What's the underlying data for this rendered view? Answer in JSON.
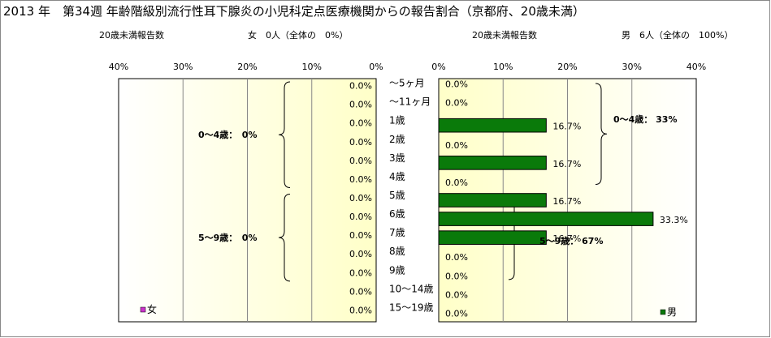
{
  "header": {
    "title": "2013 年　第34週 年齢階級別流行性耳下腺炎の小児科定点医療機関からの報告割合（京都府、20歳未満）",
    "female_count_label": "20歳未満報告数",
    "female_count_value": "女　0人（全体の　0%）",
    "male_count_label": "20歳未満報告数",
    "male_count_value": "男　6人（全体の　100%）"
  },
  "colors": {
    "female": "#cc33cc",
    "male": "#0a7a0a",
    "plot_bg_light": "#ffffff",
    "plot_bg_dark": "#ffffc8"
  },
  "chart_data": [
    {
      "type": "bar",
      "orientation": "horizontal",
      "direction": "right-to-left",
      "categories": [
        "～5ヶ月",
        "～11ヶ月",
        "1歳",
        "2歳",
        "3歳",
        "4歳",
        "5歳",
        "6歳",
        "7歳",
        "8歳",
        "9歳",
        "10～14歳",
        "15～19歳"
      ],
      "series": [
        {
          "name": "女",
          "values": [
            0,
            0,
            0,
            0,
            0,
            0,
            0,
            0,
            0,
            0,
            0,
            0,
            0
          ]
        }
      ],
      "data_labels": [
        "0.0%",
        "0.0%",
        "0.0%",
        "0.0%",
        "0.0%",
        "0.0%",
        "0.0%",
        "0.0%",
        "0.0%",
        "0.0%",
        "0.0%",
        "0.0%",
        "0.0%"
      ],
      "xlim": [
        0,
        40
      ],
      "xticks": [
        "40%",
        "30%",
        "20%",
        "10%",
        "0%"
      ],
      "grid": true,
      "legend": "bottom-left",
      "annotations": [
        {
          "text": "0～4歳：　0%",
          "from": 0,
          "to": 5
        },
        {
          "text": "5～9歳：　0%",
          "from": 6,
          "to": 10
        }
      ]
    },
    {
      "type": "bar",
      "orientation": "horizontal",
      "direction": "left-to-right",
      "categories": [
        "～5ヶ月",
        "～11ヶ月",
        "1歳",
        "2歳",
        "3歳",
        "4歳",
        "5歳",
        "6歳",
        "7歳",
        "8歳",
        "9歳",
        "10～14歳",
        "15～19歳"
      ],
      "series": [
        {
          "name": "男",
          "values": [
            0,
            0,
            16.7,
            0,
            16.7,
            0,
            16.7,
            33.3,
            16.7,
            0,
            0,
            0,
            0
          ]
        }
      ],
      "data_labels": [
        "0.0%",
        "0.0%",
        "16.7%",
        "0.0%",
        "16.7%",
        "0.0%",
        "16.7%",
        "33.3%",
        "16.7%",
        "0.0%",
        "0.0%",
        "0.0%",
        "0.0%"
      ],
      "xlim": [
        0,
        40
      ],
      "xticks": [
        "0%",
        "10%",
        "20%",
        "30%",
        "40%"
      ],
      "grid": true,
      "legend": "bottom-right",
      "annotations": [
        {
          "text": "0～4歳：  33%",
          "from": 0,
          "to": 5
        },
        {
          "text": "5～9歳：  67%",
          "from": 6,
          "to": 10
        }
      ]
    }
  ]
}
